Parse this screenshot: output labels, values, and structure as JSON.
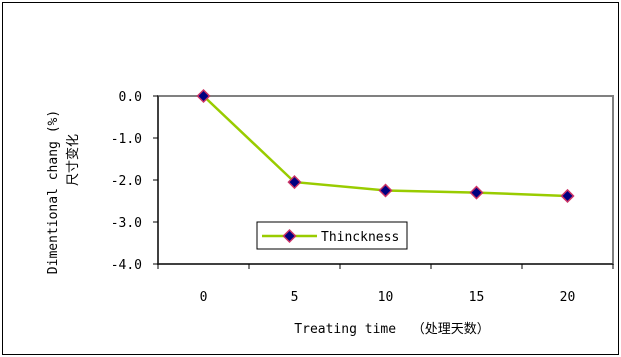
{
  "chart_data": {
    "type": "line",
    "title": "",
    "xlabel": "Treating time  （处理天数）",
    "ylabel_lines": [
      "Dimentional chang (%)",
      "尺寸变化"
    ],
    "x": [
      0,
      5,
      10,
      15,
      20
    ],
    "series": [
      {
        "name": "Thinckness",
        "values": [
          0.0,
          -2.05,
          -2.25,
          -2.3,
          -2.38
        ]
      }
    ],
    "xticks": [
      "0",
      "5",
      "10",
      "15",
      "20"
    ],
    "yticks": [
      "0.0",
      "-1.0",
      "-2.0",
      "-3.0",
      "-4.0"
    ],
    "xlim": [
      -2.5,
      22.5
    ],
    "ylim": [
      -4.0,
      0.0
    ],
    "grid": false,
    "legend_position": "inside-bottom-left",
    "colors": {
      "line": "#99cc00",
      "marker_fill": "#000080",
      "marker_edge": "#cc3366",
      "plot_background": "#ffffff",
      "frame": "#808080"
    }
  }
}
